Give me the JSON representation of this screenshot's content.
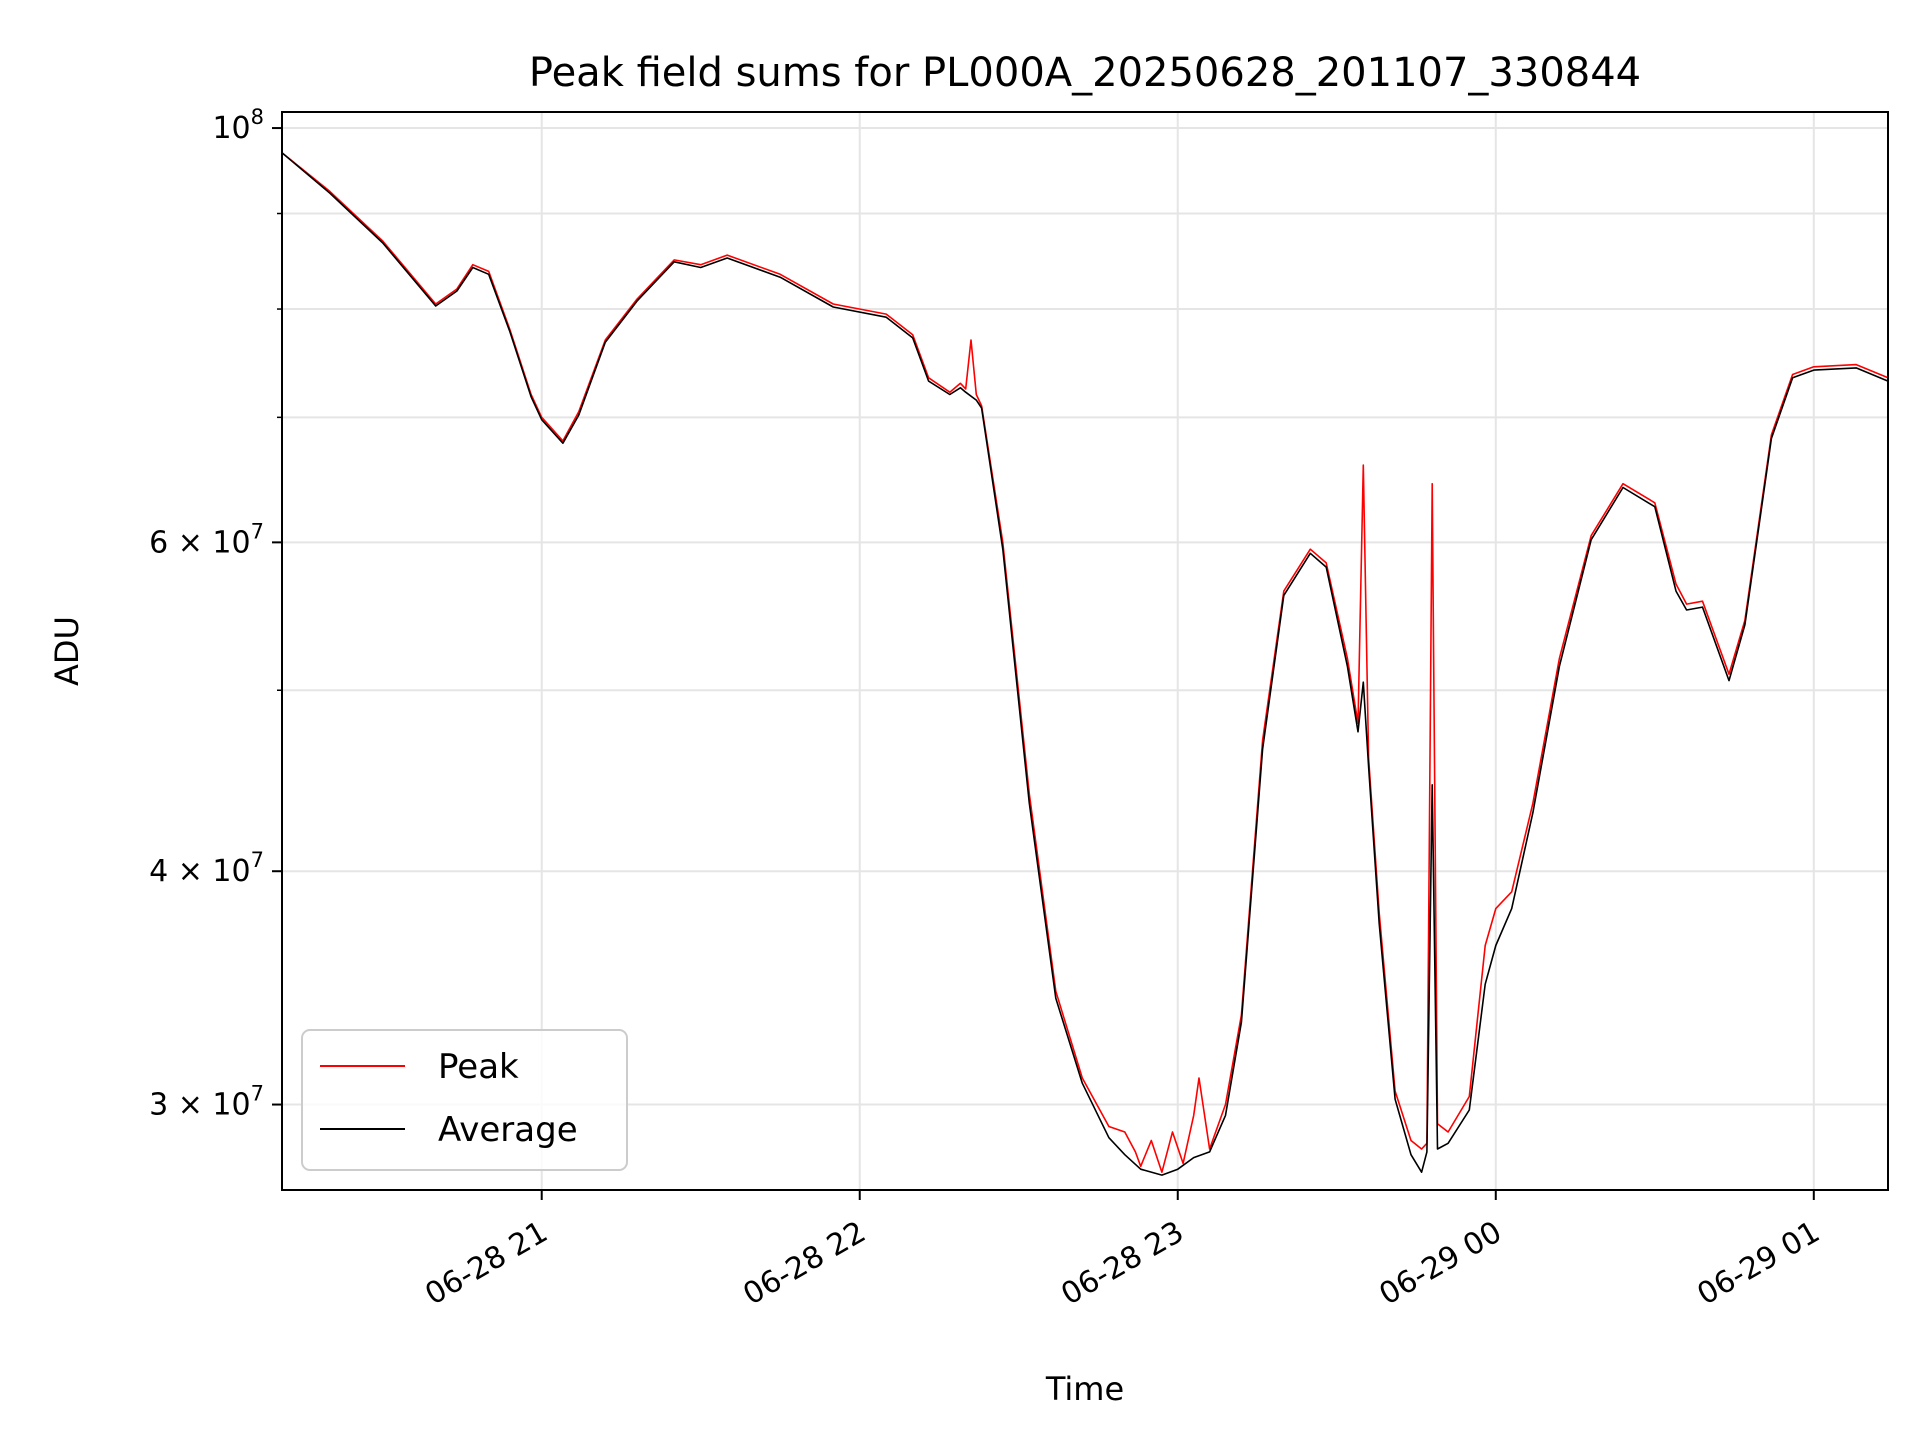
{
  "chart_data": {
    "type": "line",
    "title": "Peak field sums for PL000A_20250628_201107_330844",
    "xlabel": "Time",
    "ylabel": "ADU",
    "xlim": [
      "2025-06-28 20:11",
      "2025-06-29 01:14"
    ],
    "ylim": [
      27000000,
      102000000
    ],
    "yscale": "log",
    "grid": true,
    "legend_position": "lower-left",
    "x_ticks": [
      {
        "value": "2025-06-28 21:00",
        "label": "06-28 21"
      },
      {
        "value": "2025-06-28 22:00",
        "label": "06-28 22"
      },
      {
        "value": "2025-06-28 23:00",
        "label": "06-28 23"
      },
      {
        "value": "2025-06-29 00:00",
        "label": "06-29 00"
      },
      {
        "value": "2025-06-29 01:00",
        "label": "06-29 01"
      }
    ],
    "y_ticks": [
      {
        "value": 30000000,
        "base": "3 × 10",
        "exp": "7"
      },
      {
        "value": 40000000,
        "base": "4 × 10",
        "exp": "7"
      },
      {
        "value": 60000000,
        "base": "6 × 10",
        "exp": "7"
      },
      {
        "value": 100000000,
        "base": "10",
        "exp": "8"
      }
    ],
    "y_minor_ticks": [
      50000000,
      70000000,
      80000000,
      90000000
    ],
    "series": [
      {
        "name": "Peak",
        "color": "#ff0000",
        "points": [
          [
            "2025-06-28 20:11",
            97000000
          ],
          [
            "2025-06-28 20:20",
            92500000
          ],
          [
            "2025-06-28 20:30",
            87000000
          ],
          [
            "2025-06-28 20:40",
            80500000
          ],
          [
            "2025-06-28 20:44",
            82000000
          ],
          [
            "2025-06-28 20:47",
            84500000
          ],
          [
            "2025-06-28 20:50",
            83800000
          ],
          [
            "2025-06-28 20:54",
            78000000
          ],
          [
            "2025-06-28 20:58",
            72000000
          ],
          [
            "2025-06-28 21:00",
            70000000
          ],
          [
            "2025-06-28 21:04",
            68000000
          ],
          [
            "2025-06-28 21:07",
            70500000
          ],
          [
            "2025-06-28 21:12",
            77000000
          ],
          [
            "2025-06-28 21:18",
            81000000
          ],
          [
            "2025-06-28 21:25",
            85000000
          ],
          [
            "2025-06-28 21:30",
            84500000
          ],
          [
            "2025-06-28 21:35",
            85500000
          ],
          [
            "2025-06-28 21:45",
            83500000
          ],
          [
            "2025-06-28 21:55",
            80500000
          ],
          [
            "2025-06-28 22:05",
            79500000
          ],
          [
            "2025-06-28 22:10",
            77500000
          ],
          [
            "2025-06-28 22:13",
            73500000
          ],
          [
            "2025-06-28 22:17",
            72200000
          ],
          [
            "2025-06-28 22:19",
            73000000
          ],
          [
            "2025-06-28 22:20",
            72500000
          ],
          [
            "2025-06-28 22:21",
            77000000
          ],
          [
            "2025-06-28 22:22",
            72000000
          ],
          [
            "2025-06-28 22:23",
            71000000
          ],
          [
            "2025-06-28 22:27",
            60000000
          ],
          [
            "2025-06-28 22:32",
            44000000
          ],
          [
            "2025-06-28 22:37",
            34500000
          ],
          [
            "2025-06-28 22:42",
            31000000
          ],
          [
            "2025-06-28 22:47",
            29200000
          ],
          [
            "2025-06-28 22:50",
            29000000
          ],
          [
            "2025-06-28 22:52",
            28300000
          ],
          [
            "2025-06-28 22:53",
            27800000
          ],
          [
            "2025-06-28 22:55",
            28700000
          ],
          [
            "2025-06-28 22:57",
            27600000
          ],
          [
            "2025-06-28 22:59",
            29000000
          ],
          [
            "2025-06-28 23:01",
            27900000
          ],
          [
            "2025-06-28 23:03",
            29600000
          ],
          [
            "2025-06-28 23:04",
            31000000
          ],
          [
            "2025-06-28 23:06",
            28400000
          ],
          [
            "2025-06-28 23:09",
            30000000
          ],
          [
            "2025-06-28 23:12",
            33500000
          ],
          [
            "2025-06-28 23:16",
            47000000
          ],
          [
            "2025-06-28 23:20",
            56500000
          ],
          [
            "2025-06-28 23:25",
            59500000
          ],
          [
            "2025-06-28 23:28",
            58500000
          ],
          [
            "2025-06-28 23:32",
            52000000
          ],
          [
            "2025-06-28 23:34",
            48000000
          ],
          [
            "2025-06-28 23:35",
            66000000
          ],
          [
            "2025-06-28 23:36",
            46000000
          ],
          [
            "2025-06-28 23:38",
            38000000
          ],
          [
            "2025-06-28 23:41",
            30500000
          ],
          [
            "2025-06-28 23:44",
            28700000
          ],
          [
            "2025-06-28 23:46",
            28400000
          ],
          [
            "2025-06-28 23:47",
            28600000
          ],
          [
            "2025-06-28 23:48",
            64500000
          ],
          [
            "2025-06-28 23:49",
            29300000
          ],
          [
            "2025-06-28 23:51",
            29000000
          ],
          [
            "2025-06-28 23:55",
            30300000
          ],
          [
            "2025-06-28 23:58",
            36500000
          ],
          [
            "2025-06-29 00:00",
            38200000
          ],
          [
            "2025-06-29 00:03",
            39000000
          ],
          [
            "2025-06-29 00:07",
            43500000
          ],
          [
            "2025-06-29 00:12",
            52000000
          ],
          [
            "2025-06-29 00:18",
            60500000
          ],
          [
            "2025-06-29 00:24",
            64500000
          ],
          [
            "2025-06-29 00:30",
            63000000
          ],
          [
            "2025-06-29 00:34",
            57000000
          ],
          [
            "2025-06-29 00:36",
            55600000
          ],
          [
            "2025-06-29 00:39",
            55800000
          ],
          [
            "2025-06-29 00:44",
            51000000
          ],
          [
            "2025-06-29 00:47",
            54500000
          ],
          [
            "2025-06-29 00:52",
            68500000
          ],
          [
            "2025-06-29 00:56",
            73800000
          ],
          [
            "2025-06-29 01:00",
            74500000
          ],
          [
            "2025-06-29 01:08",
            74700000
          ],
          [
            "2025-06-29 01:14",
            73500000
          ]
        ]
      },
      {
        "name": "Average",
        "color": "#000000",
        "points": [
          [
            "2025-06-28 20:11",
            97000000
          ],
          [
            "2025-06-28 20:20",
            92300000
          ],
          [
            "2025-06-28 20:30",
            86800000
          ],
          [
            "2025-06-28 20:40",
            80300000
          ],
          [
            "2025-06-28 20:44",
            81800000
          ],
          [
            "2025-06-28 20:47",
            84200000
          ],
          [
            "2025-06-28 20:50",
            83500000
          ],
          [
            "2025-06-28 20:54",
            77800000
          ],
          [
            "2025-06-28 20:58",
            71800000
          ],
          [
            "2025-06-28 21:00",
            69800000
          ],
          [
            "2025-06-28 21:04",
            67800000
          ],
          [
            "2025-06-28 21:07",
            70200000
          ],
          [
            "2025-06-28 21:12",
            76800000
          ],
          [
            "2025-06-28 21:18",
            80800000
          ],
          [
            "2025-06-28 21:25",
            84800000
          ],
          [
            "2025-06-28 21:30",
            84200000
          ],
          [
            "2025-06-28 21:35",
            85200000
          ],
          [
            "2025-06-28 21:45",
            83200000
          ],
          [
            "2025-06-28 21:55",
            80200000
          ],
          [
            "2025-06-28 22:05",
            79200000
          ],
          [
            "2025-06-28 22:10",
            77200000
          ],
          [
            "2025-06-28 22:13",
            73200000
          ],
          [
            "2025-06-28 22:17",
            72000000
          ],
          [
            "2025-06-28 22:19",
            72600000
          ],
          [
            "2025-06-28 22:20",
            72200000
          ],
          [
            "2025-06-28 22:22",
            71500000
          ],
          [
            "2025-06-28 22:23",
            70800000
          ],
          [
            "2025-06-28 22:27",
            59500000
          ],
          [
            "2025-06-28 22:32",
            43500000
          ],
          [
            "2025-06-28 22:37",
            34200000
          ],
          [
            "2025-06-28 22:42",
            30800000
          ],
          [
            "2025-06-28 22:47",
            28800000
          ],
          [
            "2025-06-28 22:50",
            28200000
          ],
          [
            "2025-06-28 22:53",
            27700000
          ],
          [
            "2025-06-28 22:57",
            27500000
          ],
          [
            "2025-06-28 23:00",
            27700000
          ],
          [
            "2025-06-28 23:03",
            28100000
          ],
          [
            "2025-06-28 23:06",
            28300000
          ],
          [
            "2025-06-28 23:09",
            29600000
          ],
          [
            "2025-06-28 23:12",
            33200000
          ],
          [
            "2025-06-28 23:16",
            46500000
          ],
          [
            "2025-06-28 23:20",
            56200000
          ],
          [
            "2025-06-28 23:25",
            59200000
          ],
          [
            "2025-06-28 23:28",
            58200000
          ],
          [
            "2025-06-28 23:32",
            51500000
          ],
          [
            "2025-06-28 23:34",
            47500000
          ],
          [
            "2025-06-28 23:35",
            50500000
          ],
          [
            "2025-06-28 23:36",
            45500000
          ],
          [
            "2025-06-28 23:38",
            37500000
          ],
          [
            "2025-06-28 23:41",
            30200000
          ],
          [
            "2025-06-28 23:44",
            28200000
          ],
          [
            "2025-06-28 23:46",
            27600000
          ],
          [
            "2025-06-28 23:47",
            28300000
          ],
          [
            "2025-06-28 23:48",
            44500000
          ],
          [
            "2025-06-28 23:49",
            28400000
          ],
          [
            "2025-06-28 23:51",
            28600000
          ],
          [
            "2025-06-28 23:55",
            29800000
          ],
          [
            "2025-06-28 23:58",
            34800000
          ],
          [
            "2025-06-29 00:00",
            36500000
          ],
          [
            "2025-06-29 00:03",
            38200000
          ],
          [
            "2025-06-29 00:07",
            43000000
          ],
          [
            "2025-06-29 00:12",
            51500000
          ],
          [
            "2025-06-29 00:18",
            60200000
          ],
          [
            "2025-06-29 00:24",
            64200000
          ],
          [
            "2025-06-29 00:30",
            62700000
          ],
          [
            "2025-06-29 00:34",
            56500000
          ],
          [
            "2025-06-29 00:36",
            55200000
          ],
          [
            "2025-06-29 00:39",
            55400000
          ],
          [
            "2025-06-29 00:44",
            50600000
          ],
          [
            "2025-06-29 00:47",
            54200000
          ],
          [
            "2025-06-29 00:52",
            68200000
          ],
          [
            "2025-06-29 00:56",
            73500000
          ],
          [
            "2025-06-29 01:00",
            74200000
          ],
          [
            "2025-06-29 01:08",
            74400000
          ],
          [
            "2025-06-29 01:14",
            73200000
          ]
        ]
      }
    ]
  }
}
